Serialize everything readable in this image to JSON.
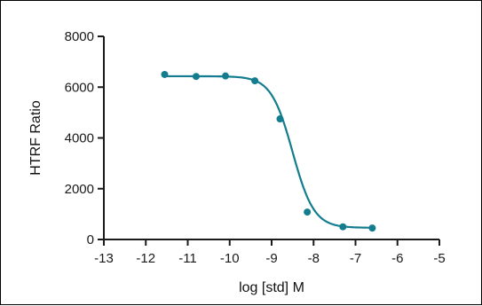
{
  "chart_data": {
    "type": "scatter",
    "xlabel": "log [std] M",
    "ylabel": "HTRF Ratio",
    "xlim": [
      -13,
      -5
    ],
    "ylim": [
      0,
      8000
    ],
    "x_ticks": [
      -13,
      -12,
      -11,
      -10,
      -9,
      -8,
      -7,
      -6,
      -5
    ],
    "y_ticks": [
      0,
      2000,
      4000,
      6000,
      8000
    ],
    "x_tick_labels": [
      "-13",
      "-12",
      "-11",
      "-10",
      "-9",
      "-8",
      "-7",
      "-6",
      "-5"
    ],
    "y_tick_labels": [
      "0",
      "2000",
      "4000",
      "6000",
      "8000"
    ],
    "grid": false,
    "color": "#137d8f",
    "series": [
      {
        "x": [
          -11.55,
          -10.8,
          -10.1,
          -9.4,
          -8.8,
          -8.15,
          -7.3,
          -6.6
        ],
        "y": [
          6500,
          6420,
          6440,
          6250,
          4750,
          1080,
          500,
          450
        ]
      }
    ],
    "fit": {
      "model": "four-parameter logistic",
      "top": 6430,
      "bottom": 460,
      "log_ic50": -8.5,
      "hill_slope": -1.7
    }
  }
}
